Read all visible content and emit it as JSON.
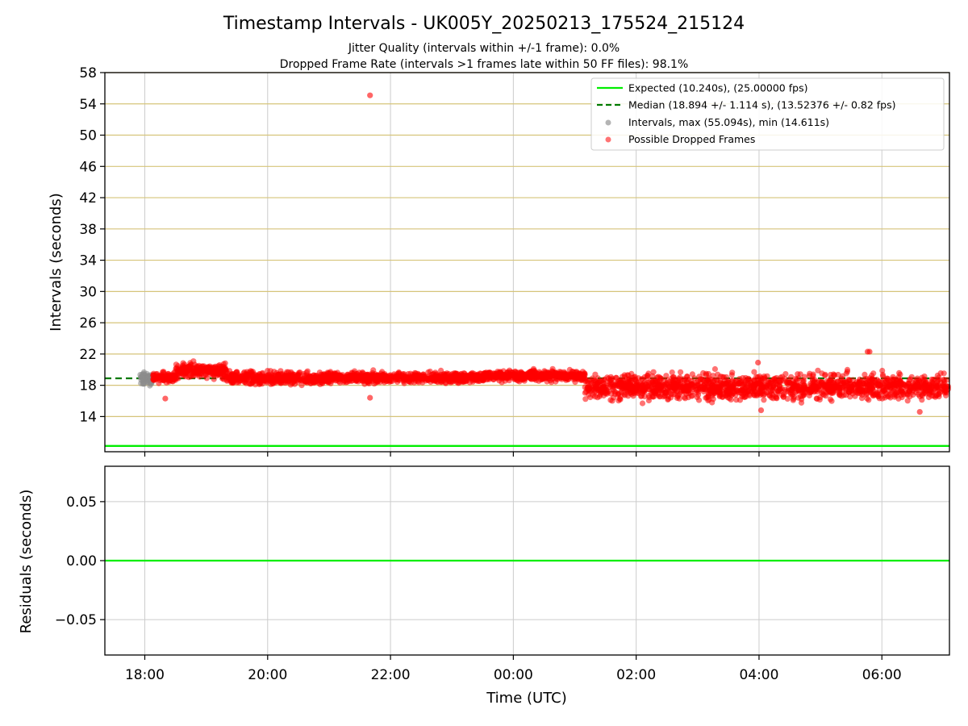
{
  "chart_data": [
    {
      "type": "scatter",
      "title": "Timestamp Intervals - UK005Y_20250213_175524_215124",
      "subtitle_lines": [
        "Jitter Quality (intervals within +/-1 frame): 0.0%",
        "Dropped Frame Rate (intervals >1 frames late within 50 FF files): 98.1%"
      ],
      "ylabel": "Intervals (seconds)",
      "ylim": [
        9.5,
        58
      ],
      "yticks": [
        14,
        18,
        22,
        26,
        30,
        34,
        38,
        42,
        46,
        50,
        54,
        58
      ],
      "xlim_hours": [
        17.35,
        31.1
      ],
      "grid": true,
      "legend_position": "top-right",
      "colors": {
        "expected": "#00ee00",
        "median": "#007a00",
        "intervals": "#8c8c8c",
        "dropped": "#ff0000",
        "hgrid": "#d6c47a",
        "vgrid": "#cccccc"
      },
      "expected_value": 10.24,
      "median_value": 18.894,
      "legend": [
        {
          "label": "Expected (10.240s), (25.00000 fps)",
          "kind": "solid-line"
        },
        {
          "label": "Median (18.894 +/- 1.114 s), (13.52376 +/- 0.82 fps)",
          "kind": "dashed-line"
        },
        {
          "label": "Intervals, max (55.094s), min (14.611s)",
          "kind": "gray-dot"
        },
        {
          "label": "Possible Dropped Frames",
          "kind": "red-dot"
        }
      ],
      "series": [
        {
          "name": "Intervals, max (55.094s), min (14.611s)",
          "time_range": [
            "17:55",
            "18:08"
          ],
          "approx_mean": 18.8,
          "approx_spread": 0.6
        },
        {
          "name": "Possible Dropped Frames",
          "segments": [
            {
              "from": "18:08",
              "to": "18:30",
              "mean": 19.0,
              "spread": 0.5
            },
            {
              "from": "18:30",
              "to": "19:20",
              "mean": 19.9,
              "spread": 0.7
            },
            {
              "from": "19:20",
              "to": "21:00",
              "mean": 18.9,
              "spread": 0.6
            },
            {
              "from": "21:00",
              "to": "23:30",
              "mean": 19.0,
              "spread": 0.5
            },
            {
              "from": "23:30",
              "to": "01:10",
              "mean": 19.2,
              "spread": 0.5
            },
            {
              "from": "01:10",
              "to": "07:05",
              "mean": 17.8,
              "spread": 1.2
            }
          ],
          "outliers": [
            {
              "x": "21:40",
              "y": 55.094
            },
            {
              "x": "05:46",
              "y": 22.3
            },
            {
              "x": "05:48",
              "y": 22.3
            },
            {
              "x": "03:59",
              "y": 20.9
            },
            {
              "x": "21:40",
              "y": 16.4
            },
            {
              "x": "18:20",
              "y": 16.3
            },
            {
              "x": "04:02",
              "y": 14.8
            },
            {
              "x": "06:37",
              "y": 14.6
            }
          ]
        }
      ]
    },
    {
      "type": "line",
      "ylabel": "Residuals (seconds)",
      "xlabel": "Time (UTC)",
      "ylim": [
        -0.08,
        0.08
      ],
      "yticks": [
        0.05,
        0.0,
        -0.05
      ],
      "ytick_labels": [
        "0.05",
        "0.00",
        "−0.05"
      ],
      "xtick_labels": [
        "18:00",
        "20:00",
        "22:00",
        "00:00",
        "02:00",
        "04:00",
        "06:00"
      ],
      "xtick_hours": [
        18,
        20,
        22,
        24,
        26,
        28,
        30
      ],
      "series": [
        {
          "name": "",
          "x_range_hours": [
            17.35,
            31.1
          ],
          "values": [
            0.0,
            0.0
          ]
        }
      ]
    }
  ]
}
